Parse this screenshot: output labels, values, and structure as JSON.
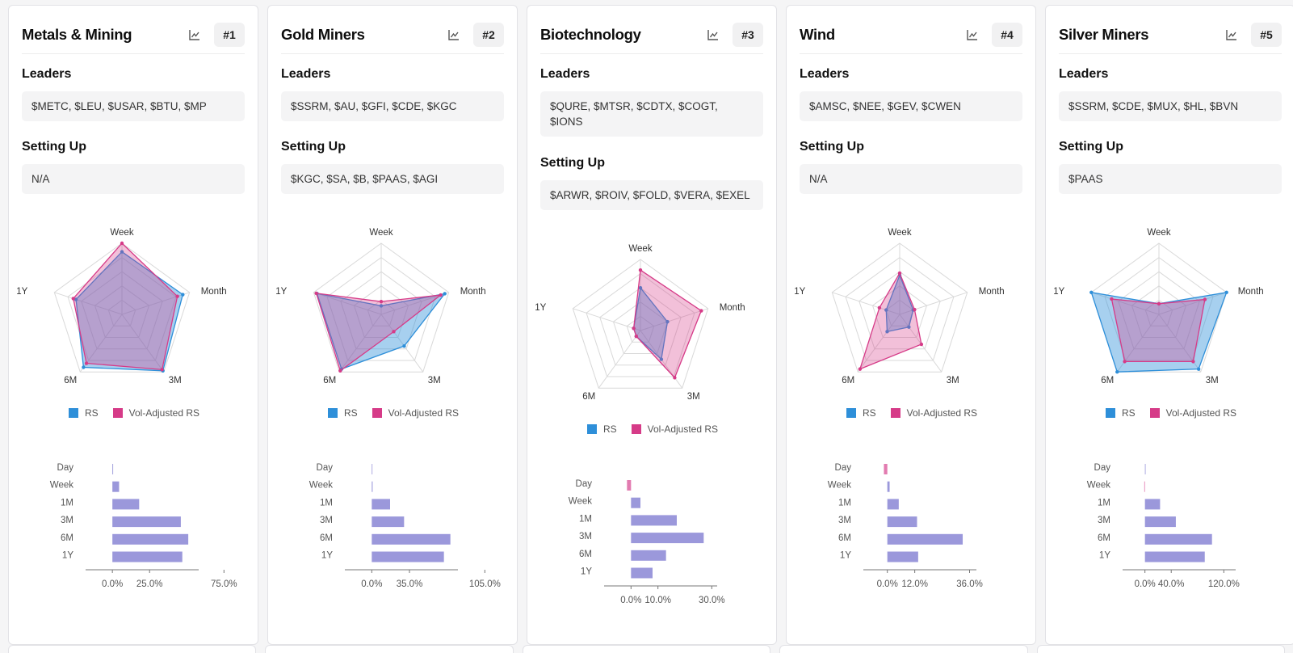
{
  "colors": {
    "rs": "#2e8fd9",
    "vol": "#d63b88",
    "bar_pos": "#9b98db",
    "bar_neg": "#e27bb0"
  },
  "labels": {
    "leaders": "Leaders",
    "setting_up": "Setting Up"
  },
  "legend": {
    "rs": "RS",
    "vol": "Vol-Adjusted RS"
  },
  "radar_axes": [
    "Week",
    "Month",
    "3M",
    "6M",
    "1Y"
  ],
  "bar_periods": [
    "Day",
    "Week",
    "1M",
    "3M",
    "6M",
    "1Y"
  ],
  "cards": [
    {
      "title": "Metals & Mining",
      "rank": "#1",
      "leaders": "$METC, $LEU, $USAR, $BTU, $MP",
      "setting_up": "N/A",
      "chart_data": {
        "type": "radar",
        "series": [
          {
            "name": "RS",
            "values": [
              0.88,
              0.9,
              0.98,
              0.92,
              0.68
            ]
          },
          {
            "name": "Vol-Adjusted RS",
            "values": [
              1.0,
              0.82,
              0.96,
              0.85,
              0.72
            ]
          }
        ],
        "bars": {
          "type": "bar",
          "orientation": "horizontal",
          "values": [
            0.5,
            4.5,
            18,
            46,
            51,
            47
          ],
          "ticks": [
            "0.0%",
            "25.0%",
            "75.0%"
          ],
          "tick_values": [
            0,
            25,
            75
          ],
          "xlim": [
            -18,
            58
          ]
        }
      }
    },
    {
      "title": "Gold Miners",
      "rank": "#2",
      "leaders": "$SSRM, $AU, $GFI, $CDE, $KGC",
      "setting_up": "$KGC, $SA, $B, $PAAS, $AGI",
      "chart_data": {
        "type": "radar",
        "series": [
          {
            "name": "RS",
            "values": [
              0.12,
              0.94,
              0.55,
              0.95,
              0.95
            ]
          },
          {
            "name": "Vol-Adjusted RS",
            "values": [
              0.18,
              0.88,
              0.3,
              0.98,
              0.96
            ]
          }
        ],
        "bars": {
          "type": "bar",
          "orientation": "horizontal",
          "values": [
            0.2,
            0.8,
            17,
            30,
            73,
            67
          ],
          "ticks": [
            "0.0%",
            "35.0%",
            "105.0%"
          ],
          "tick_values": [
            0,
            35,
            105
          ],
          "xlim": [
            -25,
            80
          ]
        }
      }
    },
    {
      "title": "Biotechnology",
      "rank": "#3",
      "leaders": "$QURE, $MTSR, $CDTX, $COGT, $IONS",
      "setting_up": "$ARWR, $ROIV, $FOLD, $VERA, $EXEL",
      "chart_data": {
        "type": "radar",
        "series": [
          {
            "name": "RS",
            "values": [
              0.6,
              0.4,
              0.5,
              0.1,
              0.1
            ]
          },
          {
            "name": "Vol-Adjusted RS",
            "values": [
              0.85,
              0.9,
              0.82,
              0.1,
              0.1
            ]
          }
        ],
        "bars": {
          "type": "bar",
          "orientation": "horizontal",
          "values": [
            -1.5,
            3.5,
            17,
            27,
            13,
            8
          ],
          "ticks": [
            "0.0%",
            "10.0%",
            "30.0%"
          ],
          "tick_values": [
            0,
            10,
            30
          ],
          "xlim": [
            -10,
            32
          ]
        }
      }
    },
    {
      "title": "Wind",
      "rank": "#4",
      "leaders": "$AMSC, $NEE, $GEV, $CWEN",
      "setting_up": "N/A",
      "chart_data": {
        "type": "radar",
        "series": [
          {
            "name": "RS",
            "values": [
              0.55,
              0.2,
              0.22,
              0.3,
              0.2
            ]
          },
          {
            "name": "Vol-Adjusted RS",
            "values": [
              0.58,
              0.22,
              0.52,
              0.95,
              0.3
            ]
          }
        ],
        "bars": {
          "type": "bar",
          "orientation": "horizontal",
          "values": [
            -1.5,
            1,
            5,
            13,
            33,
            13.5
          ],
          "ticks": [
            "0.0%",
            "12.0%",
            "36.0%"
          ],
          "tick_values": [
            0,
            12,
            36
          ],
          "xlim": [
            -10.5,
            39
          ]
        }
      }
    },
    {
      "title": "Silver Miners",
      "rank": "#5",
      "leaders": "$SSRM, $CDE, $MUX, $HL, $BVN",
      "setting_up": "$PAAS",
      "chart_data": {
        "type": "radar",
        "series": [
          {
            "name": "RS",
            "values": [
              0.15,
              1.0,
              0.95,
              1.0,
              1.0
            ]
          },
          {
            "name": "Vol-Adjusted RS",
            "values": [
              0.15,
              0.68,
              0.82,
              0.82,
              0.7
            ]
          }
        ],
        "bars": {
          "type": "bar",
          "orientation": "horizontal",
          "values": [
            0.3,
            -1,
            23,
            47,
            102,
            91
          ],
          "ticks": [
            "0.0%",
            "40.0%",
            "120.0%"
          ],
          "tick_values": [
            0,
            40,
            120
          ],
          "xlim": [
            -34,
            138
          ]
        }
      }
    }
  ]
}
